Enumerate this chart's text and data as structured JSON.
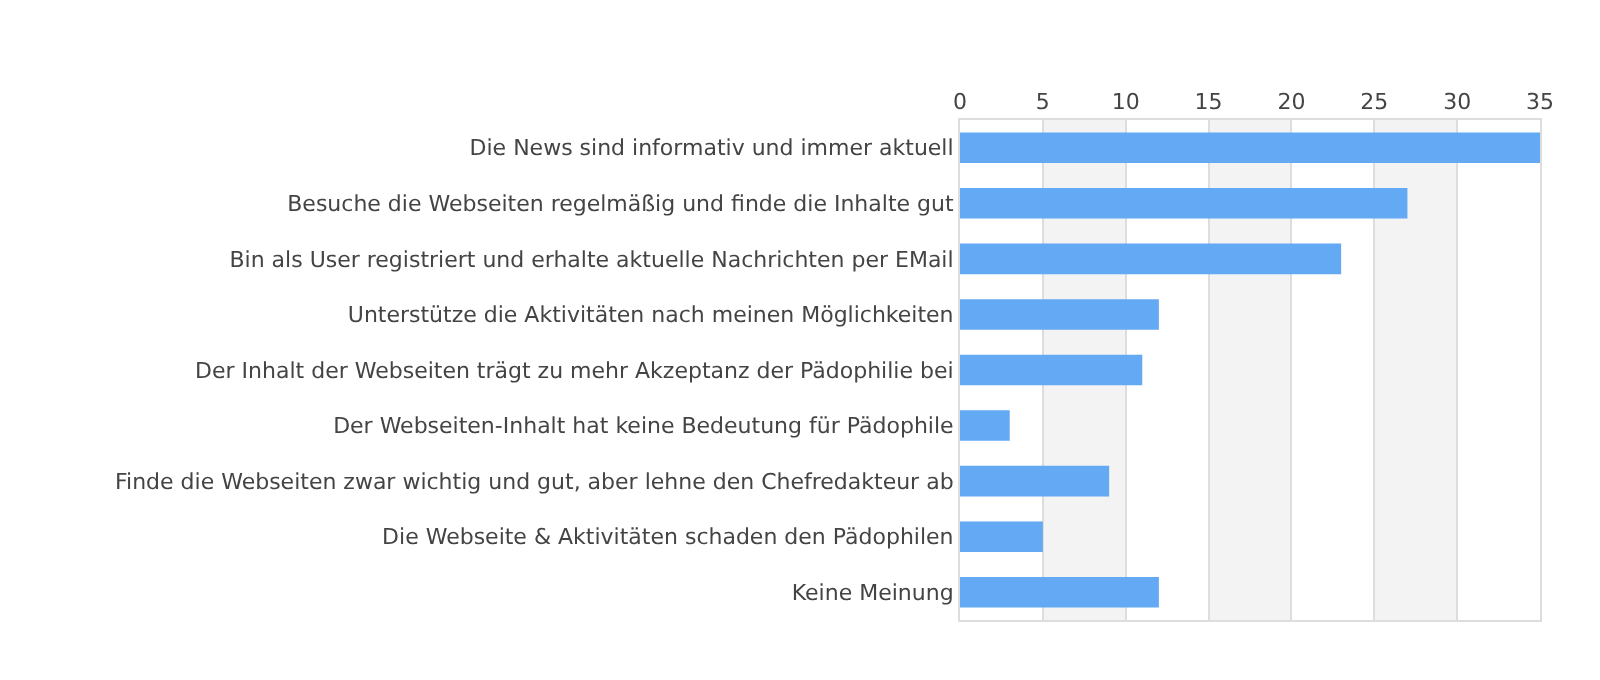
{
  "chart_data": {
    "type": "bar",
    "orientation": "horizontal",
    "categories": [
      "Die News sind informativ und immer aktuell",
      "Besuche die Webseiten regelmäßig und finde die Inhalte gut",
      "Bin als User registriert und erhalte aktuelle Nachrichten per EMail",
      "Unterstütze die Aktivitäten nach meinen Möglichkeiten",
      "Der Inhalt der Webseiten trägt zu mehr Akzeptanz der Pädophilie bei",
      "Der Webseiten-Inhalt hat keine Bedeutung für Pädophile",
      "Finde die Webseiten zwar wichtig und gut, aber lehne den Chefredakteur ab",
      "Die Webseite & Aktivitäten schaden den Pädophilen",
      "Keine Meinung"
    ],
    "values": [
      35,
      27,
      23,
      12,
      11,
      3,
      9,
      5,
      12
    ],
    "color": "#63a9f3",
    "xlim": [
      0,
      35
    ],
    "xticks": [
      0,
      5,
      10,
      15,
      20,
      25,
      30,
      35
    ],
    "grid": "x",
    "bands": [
      {
        "axis": "x",
        "from": 5,
        "to": 10,
        "color": "#f3f3f3"
      },
      {
        "axis": "x",
        "from": 15,
        "to": 20,
        "color": "#f3f3f3"
      },
      {
        "axis": "x",
        "from": 25,
        "to": 30,
        "color": "#f3f3f3"
      }
    ]
  }
}
